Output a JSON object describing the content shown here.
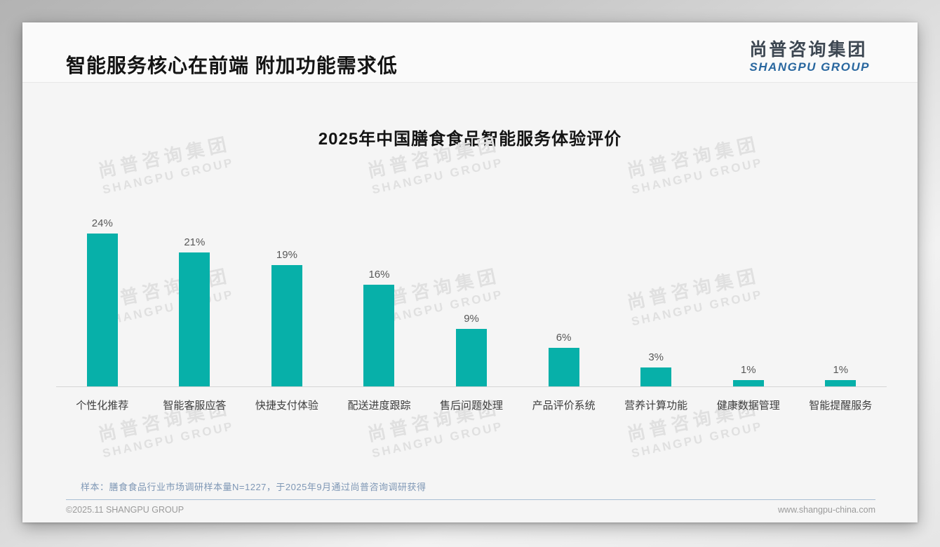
{
  "slide": {
    "title": "智能服务核心在前端 附加功能需求低",
    "logo": {
      "cn": "尚普咨询集团",
      "en": "SHANGPU GROUP"
    },
    "footnote": "样本：膳食食品行业市场调研样本量N=1227，于2025年9月通过尚普咨询调研获得",
    "footer_left": "©2025.11 SHANGPU GROUP",
    "footer_right": "www.shangpu-china.com",
    "watermark": {
      "cn": "尚普咨询集团",
      "en": "SHANGPU GROUP"
    }
  },
  "chart_data": {
    "type": "bar",
    "title": "2025年中国膳食食品智能服务体验评价",
    "categories": [
      "个性化推荐",
      "智能客服应答",
      "快捷支付体验",
      "配送进度跟踪",
      "售后问题处理",
      "产品评价系统",
      "营养计算功能",
      "健康数据管理",
      "智能提醒服务"
    ],
    "values": [
      24,
      21,
      19,
      16,
      9,
      6,
      3,
      1,
      1
    ],
    "value_labels": [
      "24%",
      "21%",
      "19%",
      "16%",
      "9%",
      "6%",
      "3%",
      "1%",
      "1%"
    ],
    "xlabel": "",
    "ylabel": "",
    "ylim": [
      0,
      26
    ],
    "grid": false,
    "legend": false,
    "bar_color": "#07b0a9",
    "axis_line_color": "#d6d6d6",
    "value_label_color": "#585858",
    "category_label_color": "#3d3d3d"
  }
}
